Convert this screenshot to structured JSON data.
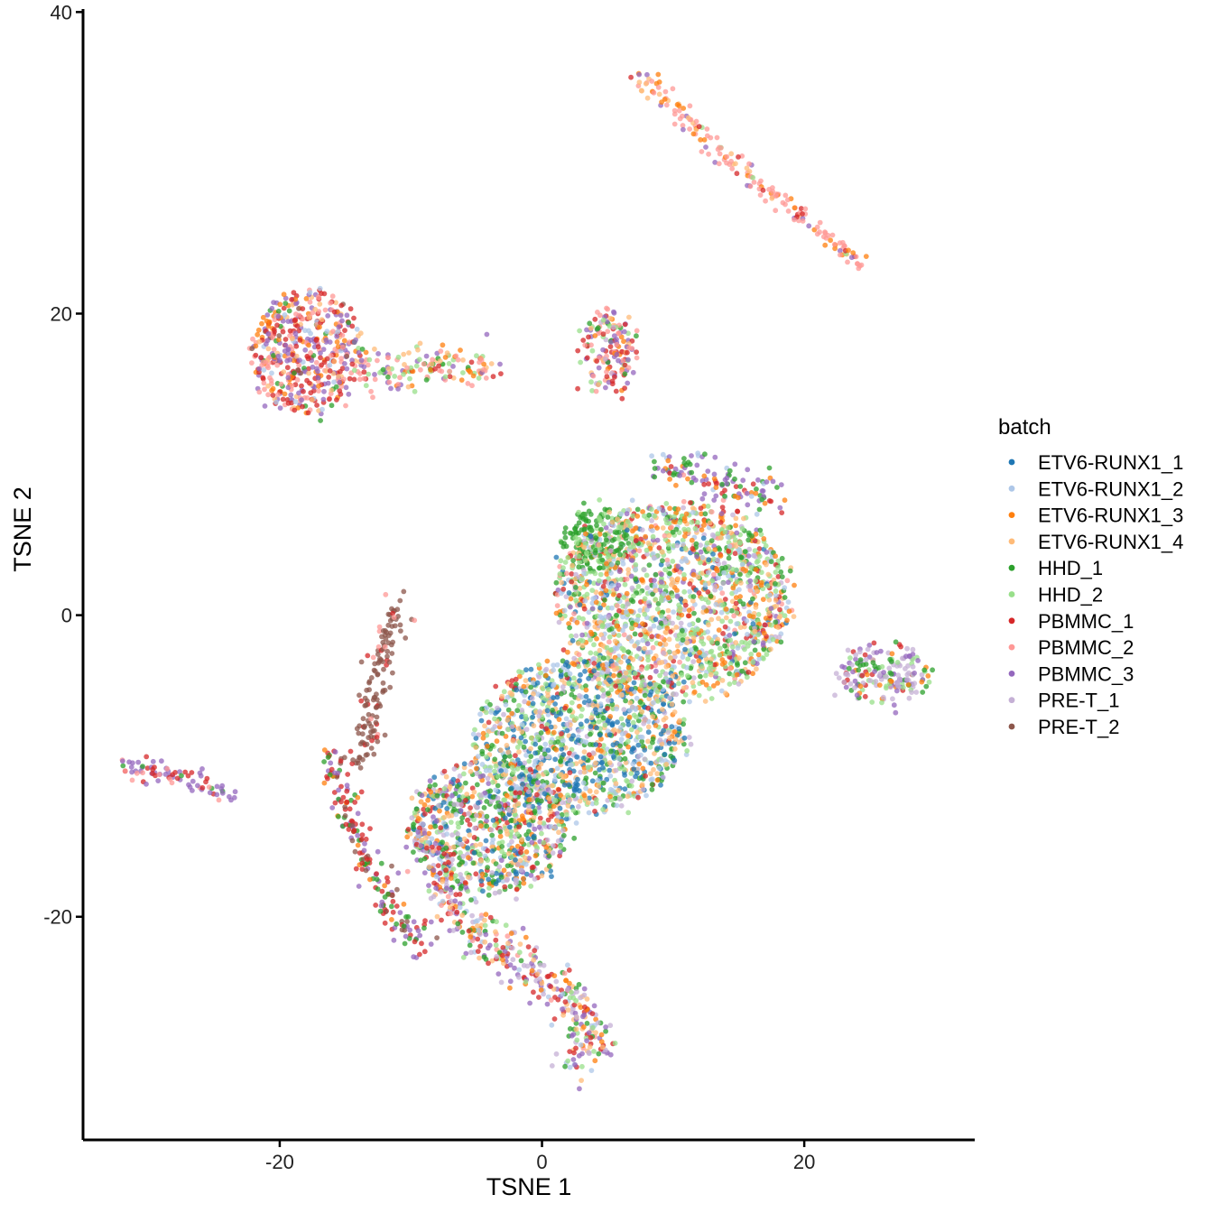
{
  "chart_data": {
    "type": "scatter",
    "title": "",
    "xlabel": "TSNE 1",
    "ylabel": "TSNE 2",
    "xlim": [
      -35,
      33
    ],
    "ylim": [
      -34.8,
      40.2
    ],
    "x_ticks": [
      -20,
      0,
      20
    ],
    "y_ticks": [
      -20,
      0,
      20,
      40
    ],
    "grid": false,
    "legend": {
      "title": "batch",
      "placement": "right",
      "entries": [
        {
          "name": "ETV6-RUNX1_1",
          "color": "#1f77b4"
        },
        {
          "name": "ETV6-RUNX1_2",
          "color": "#aec7e8"
        },
        {
          "name": "ETV6-RUNX1_3",
          "color": "#ff7f0e"
        },
        {
          "name": "ETV6-RUNX1_4",
          "color": "#ffbb78"
        },
        {
          "name": "HHD_1",
          "color": "#2ca02c"
        },
        {
          "name": "HHD_2",
          "color": "#98df8a"
        },
        {
          "name": "PBMMC_1",
          "color": "#d62728"
        },
        {
          "name": "PBMMC_2",
          "color": "#ff9896"
        },
        {
          "name": "PBMMC_3",
          "color": "#9467bd"
        },
        {
          "name": "PRE-T_1",
          "color": "#c5b0d5"
        },
        {
          "name": "PRE-T_2",
          "color": "#8c564b"
        }
      ]
    },
    "clusters": [
      {
        "name": "top-right streak",
        "path": [
          [
            7,
            36
          ],
          [
            10,
            34
          ],
          [
            13,
            31
          ],
          [
            16,
            29
          ],
          [
            19,
            27
          ],
          [
            22,
            25
          ],
          [
            24.5,
            23
          ]
        ],
        "spread": 0.6,
        "weights": {
          "PBMMC_2": 5,
          "ETV6-RUNX1_3": 2,
          "ETV6-RUNX1_4": 2,
          "PBMMC_3": 1,
          "PBMMC_1": 0.6,
          "HHD_2": 0.3
        }
      },
      {
        "name": "upper-left blob",
        "ellipses": [
          {
            "cx": -18,
            "cy": 17.5,
            "rx": 4.2,
            "ry": 4
          }
        ],
        "weights": {
          "PBMMC_1": 3,
          "PBMMC_3": 3,
          "PBMMC_2": 3,
          "ETV6-RUNX1_3": 1.5,
          "ETV6-RUNX1_2": 0.8,
          "HHD_1": 0.7,
          "ETV6-RUNX1_4": 1,
          "PRE-T_2": 0.3
        }
      },
      {
        "name": "upper-left tail",
        "path": [
          [
            -14,
            16.5
          ],
          [
            -11,
            16
          ],
          [
            -8,
            16.5
          ],
          [
            -5,
            16.5
          ],
          [
            -4,
            16.3
          ]
        ],
        "spread": 1.1,
        "weights": {
          "PBMMC_2": 3,
          "PBMMC_3": 2,
          "HHD_2": 2,
          "ETV6-RUNX1_3": 1,
          "PBMMC_1": 1,
          "HHD_1": 1,
          "ETV6-RUNX1_4": 1
        }
      },
      {
        "name": "small upper blob",
        "ellipses": [
          {
            "cx": 5,
            "cy": 17.5,
            "rx": 2.1,
            "ry": 2.6
          }
        ],
        "weights": {
          "PBMMC_1": 2,
          "PBMMC_3": 2,
          "PBMMC_2": 2,
          "ETV6-RUNX1_3": 1,
          "HHD_1": 1,
          "HHD_2": 0.8,
          "ETV6-RUNX1_4": 0.8,
          "PRE-T_1": 0.5
        }
      },
      {
        "name": "main body upper",
        "ellipses": [
          {
            "cx": 10,
            "cy": 1,
            "rx": 9,
            "ry": 6.5
          }
        ],
        "weights": {
          "HHD_2": 4,
          "ETV6-RUNX1_2": 2,
          "ETV6-RUNX1_3": 2,
          "ETV6-RUNX1_4": 2,
          "HHD_1": 1.5,
          "PBMMC_3": 1,
          "PBMMC_1": 1,
          "PRE-T_1": 1,
          "ETV6-RUNX1_1": 0.5,
          "PBMMC_2": 0.6
        }
      },
      {
        "name": "main body middle",
        "ellipses": [
          {
            "cx": 3,
            "cy": -8,
            "rx": 8,
            "ry": 5
          }
        ],
        "weights": {
          "ETV6-RUNX1_1": 3,
          "HHD_2": 2,
          "ETV6-RUNX1_4": 2,
          "ETV6-RUNX1_2": 2,
          "HHD_1": 1.5,
          "PRE-T_1": 1,
          "ETV6-RUNX1_3": 1,
          "PBMMC_1": 0.5
        }
      },
      {
        "name": "main body lower-left",
        "ellipses": [
          {
            "cx": -4,
            "cy": -14,
            "rx": 6,
            "ry": 4.5
          }
        ],
        "weights": {
          "HHD_1": 2,
          "HHD_2": 2,
          "ETV6-RUNX1_1": 1.5,
          "ETV6-RUNX1_4": 1.5,
          "PRE-T_1": 1.5,
          "PBMMC_3": 1,
          "ETV6-RUNX1_2": 1,
          "PBMMC_1": 1,
          "ETV6-RUNX1_3": 1
        }
      },
      {
        "name": "right lobe",
        "ellipses": [
          {
            "cx": 26,
            "cy": -4,
            "rx": 3.5,
            "ry": 1.8
          }
        ],
        "weights": {
          "PRE-T_1": 3,
          "PBMMC_3": 2,
          "HHD_1": 1.5,
          "ETV6-RUNX1_3": 1,
          "PBMMC_1": 1,
          "HHD_2": 1
        }
      },
      {
        "name": "lower tail",
        "path": [
          [
            -9,
            -14
          ],
          [
            -7,
            -19
          ],
          [
            -4,
            -22
          ],
          [
            0,
            -24
          ],
          [
            3,
            -26
          ],
          [
            4,
            -28.5
          ],
          [
            2,
            -29.5
          ]
        ],
        "spread": 1.4,
        "weights": {
          "PBMMC_1": 2,
          "PBMMC_3": 2,
          "ETV6-RUNX1_4": 2,
          "PRE-T_1": 2,
          "HHD_1": 1.5,
          "ETV6-RUNX1_3": 1,
          "HHD_2": 1,
          "ETV6-RUNX1_2": 1,
          "PBMMC_2": 0.5
        }
      },
      {
        "name": "brown streak",
        "path": [
          [
            -11,
            1
          ],
          [
            -12,
            -2
          ],
          [
            -12.5,
            -4
          ],
          [
            -13,
            -7
          ],
          [
            -14,
            -10
          ]
        ],
        "spread": 0.9,
        "weights": {
          "PRE-T_2": 8,
          "PBMMC_1": 1,
          "PBMMC_2": 0.5
        }
      },
      {
        "name": "left edge",
        "path": [
          [
            -16,
            -9
          ],
          [
            -15,
            -13
          ],
          [
            -13,
            -17
          ],
          [
            -11,
            -20
          ],
          [
            -9,
            -22
          ]
        ],
        "spread": 0.9,
        "weights": {
          "PBMMC_1": 3,
          "HHD_1": 2,
          "PBMMC_3": 1.5,
          "PRE-T_2": 1,
          "ETV6-RUNX1_3": 0.5
        }
      },
      {
        "name": "far-left island",
        "path": [
          [
            -32,
            -10
          ],
          [
            -29,
            -10.5
          ],
          [
            -26,
            -11
          ],
          [
            -24,
            -12
          ]
        ],
        "spread": 0.7,
        "weights": {
          "PBMMC_3": 4,
          "PBMMC_2": 2,
          "PBMMC_1": 2,
          "HHD_1": 0.3
        }
      },
      {
        "name": "upper-right arm",
        "path": [
          [
            9,
            10
          ],
          [
            13,
            9
          ],
          [
            16,
            8
          ],
          [
            18,
            8
          ]
        ],
        "spread": 1.0,
        "weights": {
          "PBMMC_3": 3,
          "HHD_1": 2,
          "PBMMC_1": 1.5,
          "ETV6-RUNX1_3": 1,
          "ETV6-RUNX1_2": 1,
          "PBMMC_2": 0.5
        }
      },
      {
        "name": "mid-left patch",
        "ellipses": [
          {
            "cx": 4,
            "cy": 5,
            "rx": 2.5,
            "ry": 2
          }
        ],
        "weights": {
          "HHD_1": 3,
          "HHD_2": 1
        }
      }
    ]
  }
}
